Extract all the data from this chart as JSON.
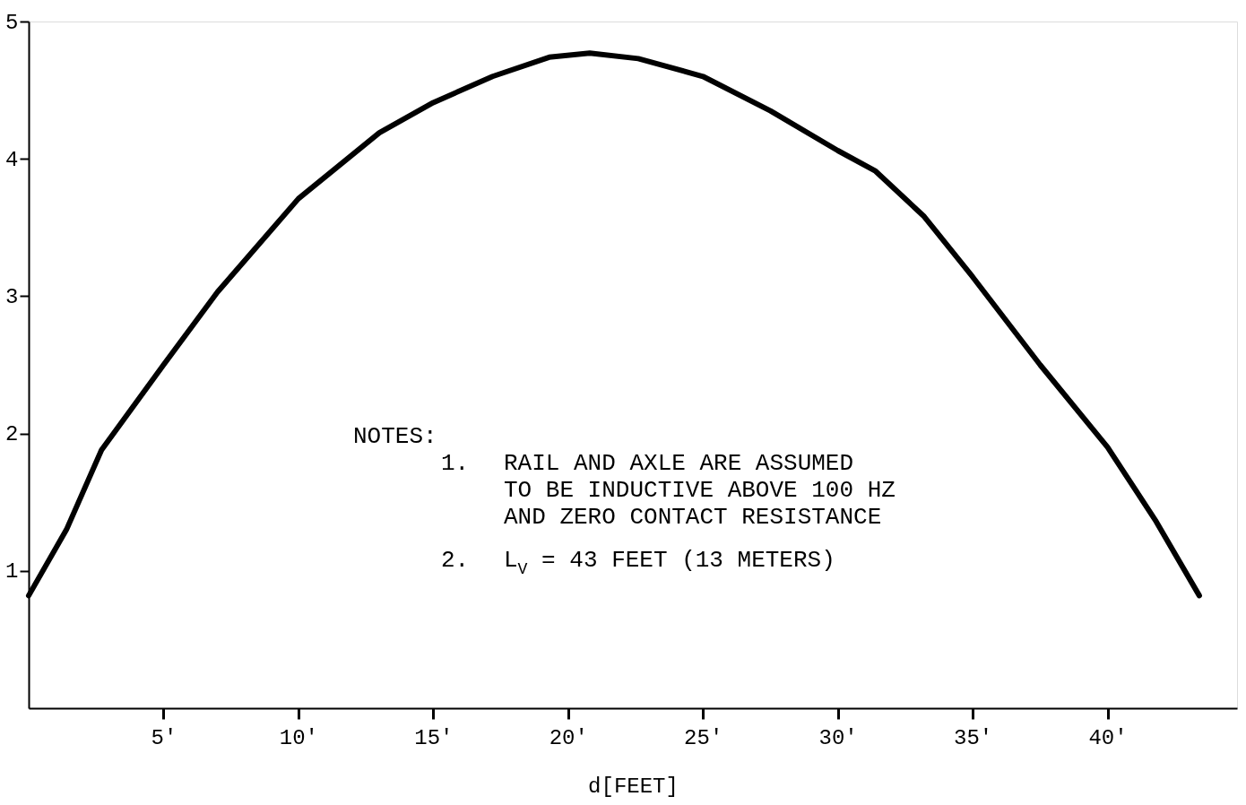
{
  "chart_data": {
    "type": "line",
    "x": [
      0,
      1.4,
      2.7,
      5,
      7,
      10,
      11.5,
      13,
      15,
      17.2,
      19.3,
      20.8,
      22.6,
      25,
      27.5,
      30,
      31.4,
      33.2,
      35,
      37.5,
      40,
      41.8,
      43.4
    ],
    "series": [
      {
        "color": "#000000",
        "values": [
          0.82,
          1.3,
          1.88,
          2.5,
          3.03,
          3.71,
          3.95,
          4.19,
          4.41,
          4.6,
          4.74,
          4.77,
          4.73,
          4.6,
          4.35,
          4.06,
          3.91,
          3.58,
          3.14,
          2.5,
          1.9,
          1.36,
          0.82
        ]
      }
    ],
    "xlabel": "d[FEET]",
    "xlim": [
      0,
      44.8
    ],
    "ylim": [
      0,
      5
    ],
    "xticks": [
      {
        "value": 5,
        "label": "5'"
      },
      {
        "value": 10,
        "label": "10'"
      },
      {
        "value": 15,
        "label": "15'"
      },
      {
        "value": 20,
        "label": "20'"
      },
      {
        "value": 25,
        "label": "25'"
      },
      {
        "value": 30,
        "label": "30'"
      },
      {
        "value": 35,
        "label": "35'"
      },
      {
        "value": 40,
        "label": "40'"
      }
    ],
    "yticks": [
      1,
      2,
      3,
      4,
      5
    ],
    "annotations": [
      "NOTES:",
      "1.  RAIL AND AXLE ARE ASSUMED\nTO BE INDUCTIVE ABOVE 100 HZ\nAND ZERO CONTACT RESISTANCE",
      "2.  L$_{V}$ = 43 FEET (13 METERS)"
    ],
    "grid": false,
    "line_style": "solid",
    "marker": "none"
  }
}
